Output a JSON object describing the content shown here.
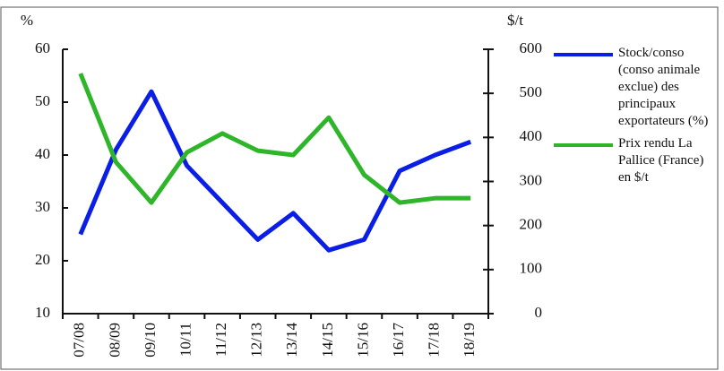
{
  "chart_data": {
    "type": "line",
    "ylabel": "%",
    "y2label": "$/t",
    "categories": [
      "07/08",
      "08/09",
      "09/10",
      "10/11",
      "11/12",
      "12/13",
      "13/14",
      "14/15",
      "15/16",
      "16/17",
      "17/18",
      "18/19"
    ],
    "series": [
      {
        "name": "Stock/conso (conso animale exclue) des principaux exportateurs (%)",
        "color": "#0a1ee6",
        "axis": "y",
        "values": [
          25,
          41,
          52,
          38,
          31,
          24,
          29,
          22,
          24,
          37,
          40,
          42.5
        ]
      },
      {
        "name": "Prix rendu La Pallice (France) en $/t",
        "color": "#2fb52a",
        "axis": "y2",
        "values": [
          545,
          344,
          252,
          366,
          409,
          370,
          360,
          445,
          315,
          252,
          262,
          262
        ]
      }
    ],
    "ylim": [
      10,
      60
    ],
    "yticks": [
      10,
      20,
      30,
      40,
      50,
      60
    ],
    "y2lim": [
      0,
      600
    ],
    "y2ticks": [
      0,
      100,
      200,
      300,
      400,
      500,
      600
    ],
    "grid": false,
    "legend": "right"
  }
}
